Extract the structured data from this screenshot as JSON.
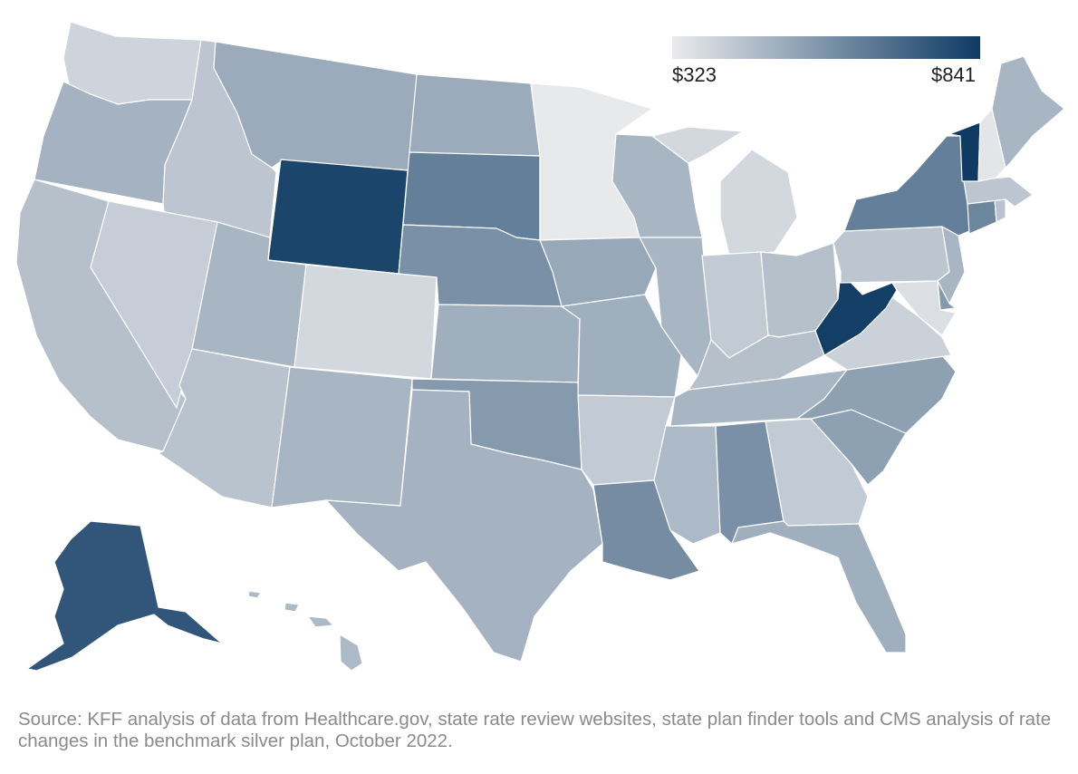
{
  "legend": {
    "min_label": "$323",
    "max_label": "$841",
    "min_value": 323,
    "max_value": 841,
    "color_low": "#ebebed",
    "color_high": "#0e3a63"
  },
  "source_note": "Source: KFF analysis of data from Healthcare.gov, state rate review websites, state plan finder tools and CMS analysis of rate changes in the benchmark silver plan, October 2022.",
  "states": [
    {
      "id": "WA",
      "value": 390
    },
    {
      "id": "OR",
      "value": 490
    },
    {
      "id": "CA",
      "value": 450
    },
    {
      "id": "ID",
      "value": 430
    },
    {
      "id": "NV",
      "value": 410
    },
    {
      "id": "MT",
      "value": 510
    },
    {
      "id": "WY",
      "value": 810
    },
    {
      "id": "UT",
      "value": 480
    },
    {
      "id": "CO",
      "value": 380
    },
    {
      "id": "AZ",
      "value": 440
    },
    {
      "id": "NM",
      "value": 480
    },
    {
      "id": "ND",
      "value": 510
    },
    {
      "id": "SD",
      "value": 640
    },
    {
      "id": "NE",
      "value": 590
    },
    {
      "id": "KS",
      "value": 500
    },
    {
      "id": "OK",
      "value": 560
    },
    {
      "id": "TX",
      "value": 490
    },
    {
      "id": "MN",
      "value": 330
    },
    {
      "id": "IA",
      "value": 520
    },
    {
      "id": "MO",
      "value": 500
    },
    {
      "id": "AR",
      "value": 420
    },
    {
      "id": "LA",
      "value": 600
    },
    {
      "id": "WI",
      "value": 480
    },
    {
      "id": "IL",
      "value": 480
    },
    {
      "id": "MI",
      "value": 380
    },
    {
      "id": "IN",
      "value": 420
    },
    {
      "id": "OH",
      "value": 450
    },
    {
      "id": "KY",
      "value": 450
    },
    {
      "id": "TN",
      "value": 480
    },
    {
      "id": "MS",
      "value": 470
    },
    {
      "id": "AL",
      "value": 590
    },
    {
      "id": "GA",
      "value": 420
    },
    {
      "id": "FL",
      "value": 500
    },
    {
      "id": "SC",
      "value": 540
    },
    {
      "id": "NC",
      "value": 540
    },
    {
      "id": "VA",
      "value": 400
    },
    {
      "id": "WV",
      "value": 830
    },
    {
      "id": "PA",
      "value": 430
    },
    {
      "id": "NY",
      "value": 640
    },
    {
      "id": "VT",
      "value": 841
    },
    {
      "id": "NH",
      "value": 340
    },
    {
      "id": "ME",
      "value": 480
    },
    {
      "id": "MA",
      "value": 430
    },
    {
      "id": "CT",
      "value": 620
    },
    {
      "id": "RI",
      "value": 440
    },
    {
      "id": "NJ",
      "value": 480
    },
    {
      "id": "DE",
      "value": 560
    },
    {
      "id": "MD",
      "value": 360
    },
    {
      "id": "AK",
      "value": 760
    },
    {
      "id": "HI",
      "value": 470
    }
  ]
}
